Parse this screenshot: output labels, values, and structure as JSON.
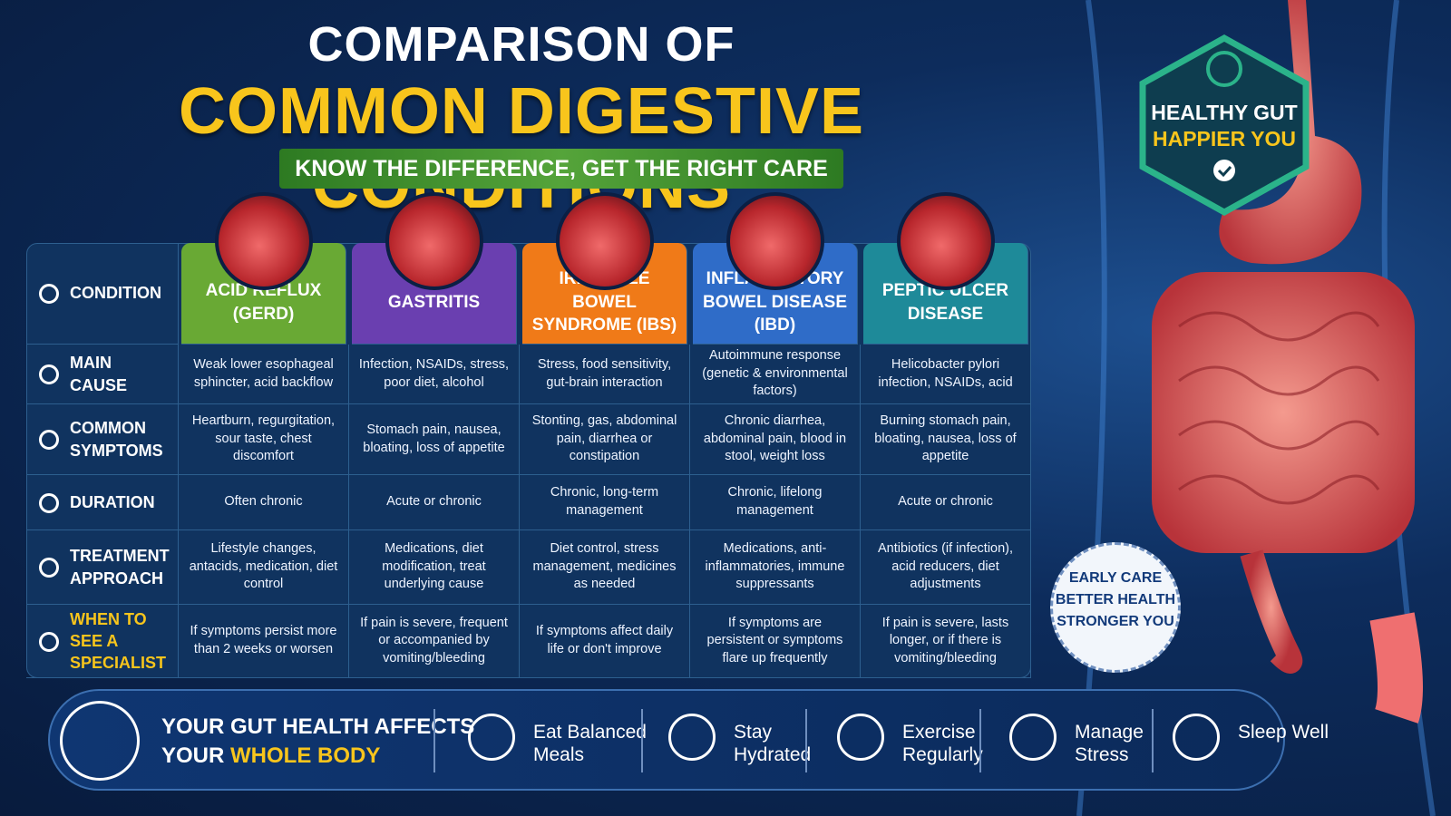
{
  "header": {
    "title_line1": "COMPARISON OF",
    "title_line2": "COMMON DIGESTIVE CONDITIONS",
    "subtitle": "KNOW THE DIFFERENCE, GET THE RIGHT CARE"
  },
  "badge": {
    "lines": [
      "HEALTHY GUT",
      "HAPPIER YOU"
    ]
  },
  "early_care": {
    "lines": [
      "EARLY CARE",
      "BETTER HEALTH",
      "STRONGER YOU"
    ]
  },
  "table": {
    "row_labels": [
      "CONDITION",
      "MAIN CAUSE",
      "COMMON SYMPTOMS",
      "DURATION",
      "TREATMENT APPROACH",
      "WHEN TO SEE A SPECIALIST"
    ],
    "conditions": [
      {
        "name": "ACID REFLUX (GERD)",
        "cells": [
          "Weak lower esophageal sphincter, acid backflow",
          "Heartburn, regurgitation, sour taste, chest discomfort",
          "Often chronic",
          "Lifestyle changes, antacids, medication, diet control",
          "If symptoms persist more than 2 weeks or worsen"
        ]
      },
      {
        "name": "GASTRITIS",
        "cells": [
          "Infection, NSAIDs, stress, poor diet, alcohol",
          "Stomach pain, nausea, bloating, loss of appetite",
          "Acute or chronic",
          "Medications, diet modification, treat underlying cause",
          "If pain is severe, frequent or accompanied by vomiting/bleeding"
        ]
      },
      {
        "name": "IRRITABLE BOWEL SYNDROME (IBS)",
        "cells": [
          "Stress, food sensitivity, gut-brain interaction",
          "Stonting, gas, abdominal pain, diarrhea or constipation",
          "Chronic, long-term management",
          "Diet control, stress management, medicines as needed",
          "If symptoms affect daily life or don't improve"
        ]
      },
      {
        "name": "INFLAMMATORY BOWEL DISEASE (IBD)",
        "cells": [
          "Autoimmune response (genetic & environmental factors)",
          "Chronic diarrhea, abdominal pain, blood in stool, weight loss",
          "Chronic, lifelong management",
          "Medications, anti-inflammatories, immune suppressants",
          "If symptoms are persistent or symptoms flare up frequently"
        ]
      },
      {
        "name": "PEPTIC ULCER DISEASE",
        "cells": [
          "Helicobacter pylori infection, NSAIDs, acid",
          "Burning stomach pain, bloating, nausea, loss of appetite",
          "Acute or chronic",
          "Antibiotics (if infection), acid reducers, diet adjustments",
          "If pain is severe, lasts longer, or if there is vomiting/bleeding"
        ]
      }
    ]
  },
  "footer": {
    "message_line1": "YOUR GUT HEALTH AFFECTS",
    "message_line2": "YOUR",
    "message_highlight": "WHOLE BODY",
    "tips": [
      "Eat Balanced Meals",
      "Stay Hydrated",
      "Exercise Regularly",
      "Manage Stress",
      "Sleep Well"
    ]
  }
}
